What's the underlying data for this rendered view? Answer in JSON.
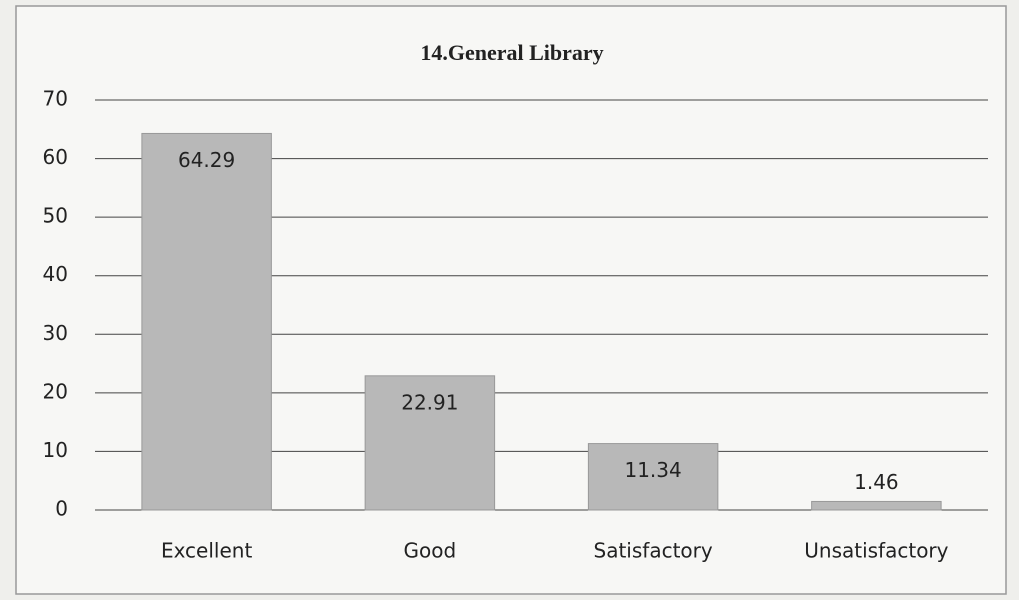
{
  "chart_data": {
    "type": "bar",
    "title": "14.General Library",
    "categories": [
      "Excellent",
      "Good",
      "Satisfactory",
      "Unsatisfactory"
    ],
    "values": [
      64.29,
      22.91,
      11.34,
      1.46
    ],
    "color": "#b8b8b8",
    "ylim": [
      0,
      70
    ],
    "yticks": [
      0,
      10,
      20,
      30,
      40,
      50,
      60,
      70
    ],
    "grid": true
  }
}
